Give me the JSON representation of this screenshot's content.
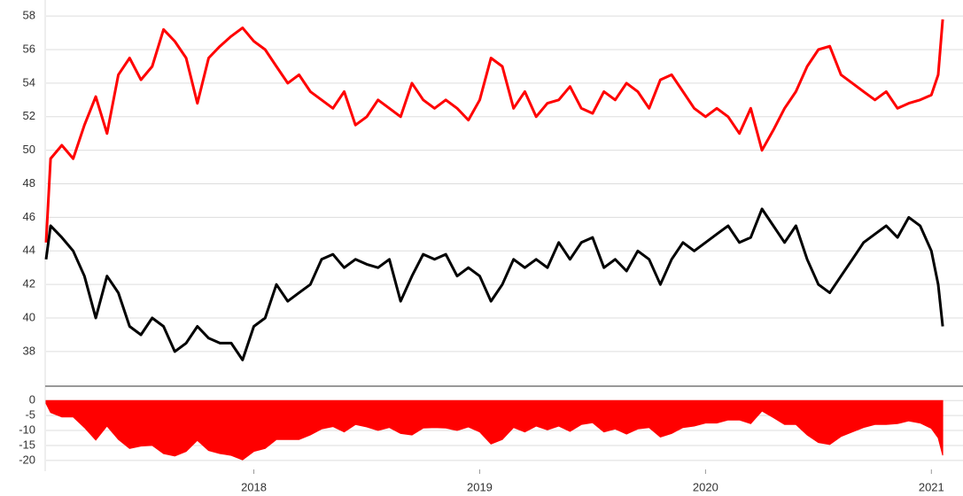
{
  "chart_data": [
    {
      "type": "line",
      "x": [
        2017.08,
        2017.1,
        2017.15,
        2017.2,
        2017.25,
        2017.3,
        2017.35,
        2017.4,
        2017.45,
        2017.5,
        2017.55,
        2017.6,
        2017.65,
        2017.7,
        2017.75,
        2017.8,
        2017.85,
        2017.9,
        2017.95,
        2018.0,
        2018.05,
        2018.1,
        2018.15,
        2018.2,
        2018.25,
        2018.3,
        2018.35,
        2018.4,
        2018.45,
        2018.5,
        2018.55,
        2018.6,
        2018.65,
        2018.7,
        2018.75,
        2018.8,
        2018.85,
        2018.9,
        2018.95,
        2019.0,
        2019.05,
        2019.1,
        2019.15,
        2019.2,
        2019.25,
        2019.3,
        2019.35,
        2019.4,
        2019.45,
        2019.5,
        2019.55,
        2019.6,
        2019.65,
        2019.7,
        2019.75,
        2019.8,
        2019.85,
        2019.9,
        2019.95,
        2020.0,
        2020.05,
        2020.1,
        2020.15,
        2020.2,
        2020.25,
        2020.3,
        2020.35,
        2020.4,
        2020.45,
        2020.5,
        2020.55,
        2020.6,
        2020.65,
        2020.7,
        2020.75,
        2020.8,
        2020.85,
        2020.9,
        2020.95,
        2021.0,
        2021.03,
        2021.05
      ],
      "series": [
        {
          "color": "#ff0000",
          "values": [
            44.5,
            49.5,
            50.3,
            49.5,
            51.5,
            53.2,
            51,
            54.5,
            55.5,
            54.2,
            55,
            57.2,
            56.5,
            55.5,
            52.8,
            55.5,
            56.2,
            56.8,
            57.3,
            56.5,
            56,
            55,
            54,
            54.5,
            53.5,
            53,
            52.5,
            53.5,
            51.5,
            52,
            53,
            52.5,
            52,
            54,
            53,
            52.5,
            53,
            52.5,
            51.8,
            53,
            55.5,
            55,
            52.5,
            53.5,
            52,
            52.8,
            53,
            53.8,
            52.5,
            52.2,
            53.5,
            53,
            54,
            53.5,
            52.5,
            54.2,
            54.5,
            53.5,
            52.5,
            52,
            52.5,
            52,
            51,
            52.5,
            50,
            51.2,
            52.5,
            53.5,
            55,
            56,
            56.2,
            54.5,
            54,
            53.5,
            53,
            53.5,
            52.5,
            52.8,
            53,
            53.3,
            54.5,
            57.8
          ]
        },
        {
          "color": "#000000",
          "values": [
            43.5,
            45.5,
            44.8,
            44,
            42.5,
            40,
            42.5,
            41.5,
            39.5,
            39,
            40,
            39.5,
            38,
            38.5,
            39.5,
            38.8,
            38.5,
            38.5,
            37.5,
            39.5,
            40,
            42,
            41,
            41.5,
            42,
            43.5,
            43.8,
            43,
            43.5,
            43.2,
            43,
            43.5,
            41,
            42.5,
            43.8,
            43.5,
            43.8,
            42.5,
            43,
            42.5,
            41,
            42,
            43.5,
            43,
            43.5,
            43,
            44.5,
            43.5,
            44.5,
            44.8,
            43,
            43.5,
            42.8,
            44,
            43.5,
            42,
            43.5,
            44.5,
            44,
            44.5,
            45,
            45.5,
            44.5,
            44.8,
            46.5,
            45.5,
            44.5,
            45.5,
            43.5,
            42,
            41.5,
            42.5,
            43.5,
            44.5,
            45,
            45.5,
            44.8,
            46,
            45.5,
            44,
            42,
            39.5
          ]
        }
      ],
      "xlim": [
        2017.08,
        2021.14
      ],
      "ylim": [
        36.2,
        58.8
      ],
      "yticks": [
        38,
        40,
        42,
        44,
        46,
        48,
        50,
        52,
        54,
        56,
        58
      ],
      "grid": true
    },
    {
      "type": "area",
      "x": [
        2017.08,
        2017.1,
        2017.15,
        2017.2,
        2017.25,
        2017.3,
        2017.35,
        2017.4,
        2017.45,
        2017.5,
        2017.55,
        2017.6,
        2017.65,
        2017.7,
        2017.75,
        2017.8,
        2017.85,
        2017.9,
        2017.95,
        2018.0,
        2018.05,
        2018.1,
        2018.15,
        2018.2,
        2018.25,
        2018.3,
        2018.35,
        2018.4,
        2018.45,
        2018.5,
        2018.55,
        2018.6,
        2018.65,
        2018.7,
        2018.75,
        2018.8,
        2018.85,
        2018.9,
        2018.95,
        2019.0,
        2019.05,
        2019.1,
        2019.15,
        2019.2,
        2019.25,
        2019.3,
        2019.35,
        2019.4,
        2019.45,
        2019.5,
        2019.55,
        2019.6,
        2019.65,
        2019.7,
        2019.75,
        2019.8,
        2019.85,
        2019.9,
        2019.95,
        2020.0,
        2020.05,
        2020.1,
        2020.15,
        2020.2,
        2020.25,
        2020.3,
        2020.35,
        2020.4,
        2020.45,
        2020.5,
        2020.55,
        2020.6,
        2020.65,
        2020.7,
        2020.75,
        2020.8,
        2020.85,
        2020.9,
        2020.95,
        2021.0,
        2021.03,
        2021.05
      ],
      "series": [
        {
          "color": "#ff0000",
          "values": [
            -1,
            -4,
            -5.5,
            -5.5,
            -9,
            -13.2,
            -8.5,
            -13,
            -16,
            -15.2,
            -15,
            -17.7,
            -18.5,
            -17,
            -13.3,
            -16.7,
            -17.7,
            -18.3,
            -19.8,
            -17,
            -16,
            -13,
            -13,
            -13,
            -11.5,
            -9.5,
            -8.7,
            -10.5,
            -8,
            -8.8,
            -10,
            -9,
            -11,
            -11.5,
            -9.2,
            -9,
            -9.2,
            -10,
            -8.8,
            -10.5,
            -14.5,
            -13,
            -9,
            -10.5,
            -8.5,
            -9.8,
            -8.5,
            -10.3,
            -8,
            -7.4,
            -10.5,
            -9.5,
            -11.2,
            -9.5,
            -9,
            -12.2,
            -11,
            -9,
            -8.5,
            -7.5,
            -7.5,
            -6.5,
            -6.5,
            -7.7,
            -3.5,
            -5.7,
            -8,
            -8,
            -11.5,
            -14,
            -14.7,
            -12,
            -10.5,
            -9,
            -8,
            -8,
            -7.7,
            -6.8,
            -7.5,
            -9.3,
            -12.5,
            -18.3
          ]
        }
      ],
      "xlim": [
        2017.08,
        2021.14
      ],
      "xticks": [
        2018,
        2019,
        2020,
        2021
      ],
      "ylim": [
        -23,
        4.5
      ],
      "yticks": [
        0,
        -5,
        -10,
        -15,
        -20
      ],
      "grid": true
    }
  ]
}
